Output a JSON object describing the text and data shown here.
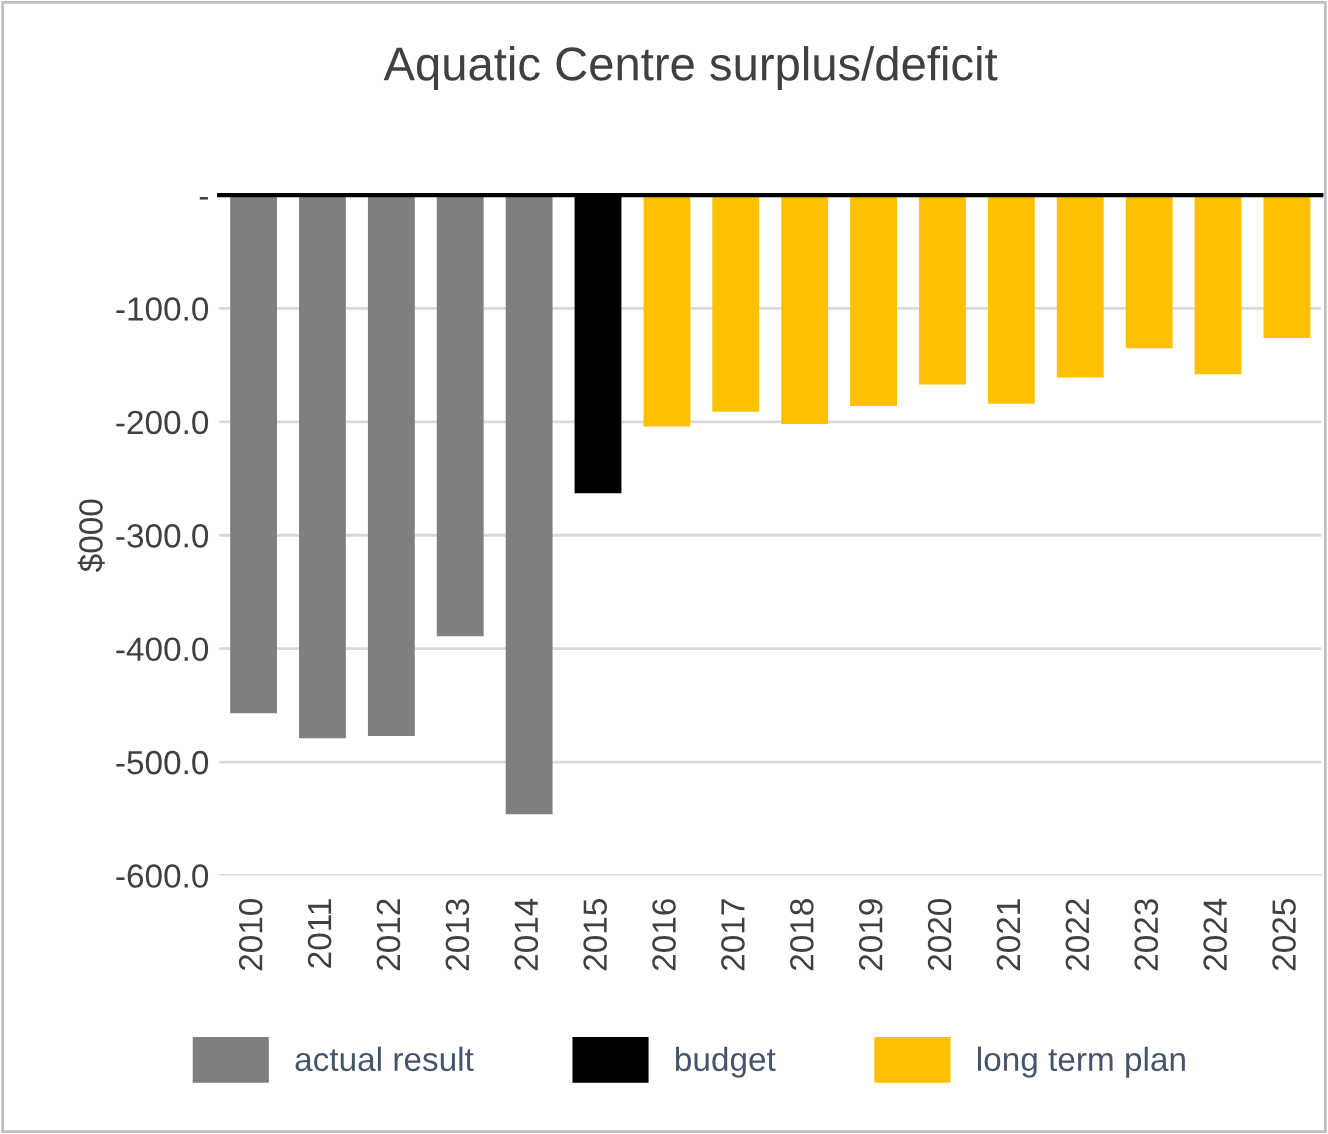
{
  "chart_data": {
    "type": "bar",
    "title": "Aquatic Centre surplus/deficit",
    "ylabel": "$000",
    "categories": [
      "2010",
      "2011",
      "2012",
      "2013",
      "2014",
      "2015",
      "2016",
      "2017",
      "2018",
      "2019",
      "2020",
      "2021",
      "2022",
      "2023",
      "2024",
      "2025"
    ],
    "series": [
      {
        "name": "actual result",
        "color": "#7f7f7f",
        "values": [
          -457,
          -479,
          -477,
          -389,
          -546,
          null,
          null,
          null,
          null,
          null,
          null,
          null,
          null,
          null,
          null,
          null
        ]
      },
      {
        "name": "budget",
        "color": "#000000",
        "values": [
          null,
          null,
          null,
          null,
          null,
          -263,
          null,
          null,
          null,
          null,
          null,
          null,
          null,
          null,
          null,
          null
        ]
      },
      {
        "name": "long term plan",
        "color": "#ffc000",
        "values": [
          null,
          null,
          null,
          null,
          null,
          null,
          -204,
          -191,
          -202,
          -186,
          -167,
          -184,
          -161,
          -135,
          -158,
          -126
        ]
      }
    ],
    "ylim": [
      -600,
      0
    ],
    "yticks": [
      {
        "value": 0,
        "label": "-"
      },
      {
        "value": -100,
        "label": "-100.0"
      },
      {
        "value": -200,
        "label": "-200.0"
      },
      {
        "value": -300,
        "label": "-300.0"
      },
      {
        "value": -400,
        "label": "-400.0"
      },
      {
        "value": -500,
        "label": "-500.0"
      },
      {
        "value": -600,
        "label": "-600.0"
      }
    ],
    "grid": "y",
    "legend": "bottom"
  }
}
